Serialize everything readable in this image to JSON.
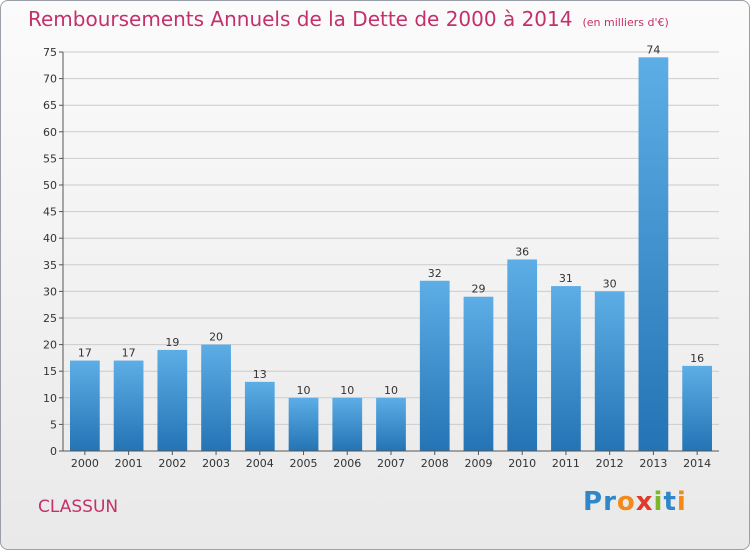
{
  "title": "Remboursements Annuels de la Dette de 2000 à 2014",
  "unit": "(en milliers d'€)",
  "place": "CLASSUN",
  "logo": {
    "letters": [
      "P",
      "r",
      "o",
      "x",
      "i",
      "t",
      "i"
    ]
  },
  "colors": {
    "title": "#c4306a",
    "bar_top": "#5dade6",
    "bar_bottom": "#2474b5",
    "grid": "#cccccc"
  },
  "chart_data": {
    "type": "bar",
    "title": "Remboursements Annuels de la Dette de 2000 à 2014",
    "subtitle": "(en milliers d'€)",
    "categories": [
      "2000",
      "2001",
      "2002",
      "2003",
      "2004",
      "2005",
      "2006",
      "2007",
      "2008",
      "2009",
      "2010",
      "2011",
      "2012",
      "2013",
      "2014"
    ],
    "values": [
      17,
      17,
      19,
      20,
      13,
      10,
      10,
      10,
      32,
      29,
      36,
      31,
      30,
      74,
      16
    ],
    "ylim": [
      0,
      75
    ],
    "yticks": [
      0,
      5,
      10,
      15,
      20,
      25,
      30,
      35,
      40,
      45,
      50,
      55,
      60,
      65,
      70,
      75
    ],
    "grid": true,
    "legend": "none"
  }
}
